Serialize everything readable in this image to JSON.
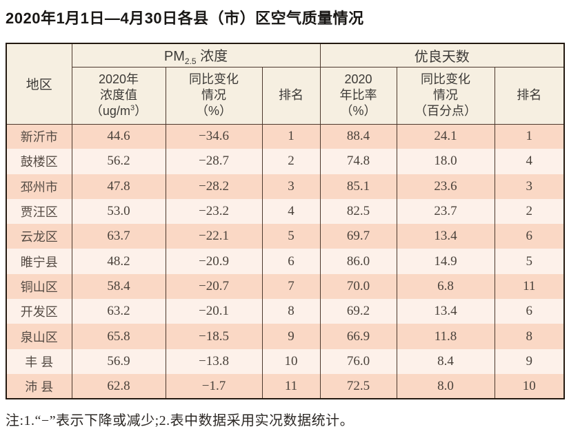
{
  "page": {
    "title": "2020年1月1日—4月30日各县（市）区空气质量情况",
    "note": "注:1.“−”表示下降或减少;2.表中数据采用实况数据统计。"
  },
  "table": {
    "region_header": "地区",
    "pm_group": {
      "base": "PM",
      "sub": "2.5",
      "rest": " 浓度"
    },
    "good_group": "优良天数",
    "columns": {
      "pm_value": {
        "l1": "2020年",
        "l2": "浓度值",
        "l3a": "（ug/m",
        "l3sup": "3",
        "l3b": "）"
      },
      "pm_change": {
        "l1": "同比变化",
        "l2": "情况",
        "l3": "（%）"
      },
      "pm_rank": "排名",
      "rate": {
        "l1": "2020",
        "l2": "年比率",
        "l3": "（%）"
      },
      "rate_change": {
        "l1": "同比变化",
        "l2": "情况",
        "l3": "（百分点）"
      },
      "rate_rank": "排名"
    },
    "rows": [
      {
        "region": "新沂市",
        "pm_value": "44.6",
        "pm_change": "−34.6",
        "pm_rank": "1",
        "rate": "88.4",
        "rate_change": "24.1",
        "rate_rank": "1"
      },
      {
        "region": "鼓楼区",
        "pm_value": "56.2",
        "pm_change": "−28.7",
        "pm_rank": "2",
        "rate": "74.8",
        "rate_change": "18.0",
        "rate_rank": "4"
      },
      {
        "region": "邳州市",
        "pm_value": "47.8",
        "pm_change": "−28.2",
        "pm_rank": "3",
        "rate": "85.1",
        "rate_change": "23.6",
        "rate_rank": "3"
      },
      {
        "region": "贾汪区",
        "pm_value": "53.0",
        "pm_change": "−23.2",
        "pm_rank": "4",
        "rate": "82.5",
        "rate_change": "23.7",
        "rate_rank": "2"
      },
      {
        "region": "云龙区",
        "pm_value": "63.7",
        "pm_change": "−22.1",
        "pm_rank": "5",
        "rate": "69.7",
        "rate_change": "13.4",
        "rate_rank": "6"
      },
      {
        "region": "睢宁县",
        "pm_value": "48.2",
        "pm_change": "−20.9",
        "pm_rank": "6",
        "rate": "86.0",
        "rate_change": "14.9",
        "rate_rank": "5"
      },
      {
        "region": "铜山区",
        "pm_value": "58.4",
        "pm_change": "−20.7",
        "pm_rank": "7",
        "rate": "70.0",
        "rate_change": "6.8",
        "rate_rank": "11"
      },
      {
        "region": "开发区",
        "pm_value": "63.2",
        "pm_change": "−20.1",
        "pm_rank": "8",
        "rate": "69.2",
        "rate_change": "13.4",
        "rate_rank": "6"
      },
      {
        "region": "泉山区",
        "pm_value": "65.8",
        "pm_change": "−18.5",
        "pm_rank": "9",
        "rate": "66.9",
        "rate_change": "11.8",
        "rate_rank": "8"
      },
      {
        "region": "丰 县",
        "pm_value": "56.9",
        "pm_change": "−13.8",
        "pm_rank": "10",
        "rate": "76.0",
        "rate_change": "8.4",
        "rate_rank": "9"
      },
      {
        "region": "沛 县",
        "pm_value": "62.8",
        "pm_change": "−1.7",
        "pm_rank": "11",
        "rate": "72.5",
        "rate_change": "8.0",
        "rate_rank": "10"
      }
    ],
    "colors": {
      "row_odd": "#fad8c5",
      "row_even": "#fdf1ea",
      "header_bg": "#f6efe1",
      "border_dark": "#22180f",
      "border_inner": "#4b372b"
    }
  }
}
